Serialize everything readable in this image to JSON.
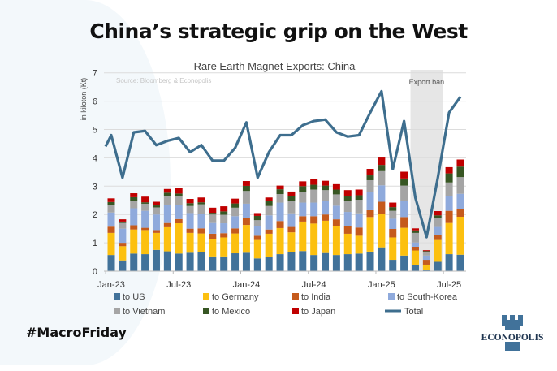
{
  "slide_title": "China’s strategic grip on the West",
  "hashtag": "#MacroFriday",
  "logo_text": "ECONOPOLIS",
  "chart_data": {
    "type": "bar",
    "stacked": true,
    "title": "Rare Earth Magnet Exports: China",
    "source": "Source: Bloomberg  & Econopolis",
    "ylabel": "in kiloton (Kt)",
    "xlabel": "",
    "ylim": [
      0,
      7
    ],
    "yticks": [
      "0",
      "1",
      "2",
      "3",
      "4",
      "5",
      "6",
      "7"
    ],
    "grid": true,
    "legend_position": "bottom",
    "annotation": {
      "text": "Export ban",
      "start_index": 27,
      "end_index": 29
    },
    "categories": [
      "Jan-23",
      "Feb-23",
      "Mar-23",
      "Apr-23",
      "May-23",
      "Jun-23",
      "Jul-23",
      "Aug-23",
      "Sep-23",
      "Oct-23",
      "Nov-23",
      "Dec-23",
      "Jan-24",
      "Feb-24",
      "Mar-24",
      "Apr-24",
      "May-24",
      "Jun-24",
      "Jul-24",
      "Aug-24",
      "Sep-24",
      "Oct-24",
      "Nov-24",
      "Dec-24",
      "Jan-25",
      "Feb-25",
      "Mar-25",
      "Apr-25",
      "May-25",
      "Jun-25",
      "Jul-25",
      "Aug-25"
    ],
    "xtick_labels": [
      {
        "index": 0,
        "label": "Jan-23"
      },
      {
        "index": 6,
        "label": "Jul-23"
      },
      {
        "index": 12,
        "label": "Jan-24"
      },
      {
        "index": 18,
        "label": "Jul-24"
      },
      {
        "index": 24,
        "label": "Jan-25"
      },
      {
        "index": 30,
        "label": "Jul-25"
      }
    ],
    "series": [
      {
        "name": "to US",
        "color": "#41729a",
        "values": [
          0.57,
          0.38,
          0.62,
          0.6,
          0.75,
          0.7,
          0.62,
          0.65,
          0.68,
          0.52,
          0.52,
          0.63,
          0.65,
          0.45,
          0.5,
          0.6,
          0.68,
          0.71,
          0.57,
          0.64,
          0.57,
          0.6,
          0.62,
          0.69,
          0.84,
          0.4,
          0.55,
          0.21,
          0.04,
          0.33,
          0.6,
          0.58
        ]
      },
      {
        "name": "to Germany",
        "color": "#fcc010",
        "values": [
          0.78,
          0.5,
          0.85,
          0.85,
          0.6,
          0.85,
          1.07,
          0.7,
          0.65,
          0.6,
          0.67,
          0.7,
          0.98,
          0.65,
          0.82,
          0.92,
          0.69,
          1.04,
          1.11,
          1.14,
          1.02,
          0.72,
          0.63,
          1.22,
          1.18,
          0.79,
          0.98,
          0.52,
          0.19,
          0.77,
          1.1,
          1.34
        ]
      },
      {
        "name": "to India",
        "color": "#c55a1c",
        "values": [
          0.22,
          0.12,
          0.15,
          0.08,
          0.1,
          0.15,
          0.15,
          0.15,
          0.18,
          0.2,
          0.15,
          0.18,
          0.25,
          0.15,
          0.15,
          0.25,
          0.19,
          0.19,
          0.26,
          0.22,
          0.24,
          0.28,
          0.29,
          0.24,
          0.43,
          0.3,
          0.38,
          0.13,
          0.17,
          0.17,
          0.43,
          0.26
        ]
      },
      {
        "name": "to South-Korea",
        "color": "#8faadc",
        "values": [
          0.5,
          0.5,
          0.6,
          0.6,
          0.55,
          0.65,
          0.5,
          0.55,
          0.5,
          0.38,
          0.35,
          0.43,
          0.5,
          0.35,
          0.5,
          0.65,
          0.48,
          0.48,
          0.48,
          0.49,
          0.48,
          0.49,
          0.5,
          0.63,
          0.58,
          0.36,
          0.58,
          0.15,
          0.15,
          0.29,
          0.51,
          0.55
        ]
      },
      {
        "name": "to Vietnam",
        "color": "#a5a5a5",
        "values": [
          0.27,
          0.2,
          0.27,
          0.25,
          0.25,
          0.3,
          0.3,
          0.25,
          0.35,
          0.3,
          0.3,
          0.3,
          0.45,
          0.2,
          0.33,
          0.3,
          0.43,
          0.38,
          0.46,
          0.37,
          0.4,
          0.38,
          0.48,
          0.43,
          0.5,
          0.28,
          0.53,
          0.34,
          0.12,
          0.33,
          0.49,
          0.59
        ]
      },
      {
        "name": "to Mexico",
        "color": "#375623",
        "values": [
          0.1,
          0.05,
          0.12,
          0.05,
          0.07,
          0.12,
          0.1,
          0.1,
          0.07,
          0.06,
          0.12,
          0.15,
          0.18,
          0.15,
          0.17,
          0.17,
          0.17,
          0.2,
          0.17,
          0.16,
          0.17,
          0.19,
          0.16,
          0.17,
          0.22,
          0.13,
          0.25,
          0.09,
          0.04,
          0.08,
          0.32,
          0.37
        ]
      },
      {
        "name": "to Japan",
        "color": "#c00000",
        "values": [
          0.13,
          0.08,
          0.14,
          0.2,
          0.13,
          0.13,
          0.2,
          0.15,
          0.17,
          0.18,
          0.18,
          0.17,
          0.17,
          0.1,
          0.13,
          0.13,
          0.17,
          0.17,
          0.19,
          0.17,
          0.19,
          0.2,
          0.2,
          0.23,
          0.26,
          0.16,
          0.24,
          0.07,
          0.03,
          0.15,
          0.22,
          0.25
        ]
      }
    ],
    "line": {
      "name": "Total",
      "color": "#3e6e8e",
      "values": [
        4.8,
        3.3,
        4.9,
        4.95,
        4.45,
        4.6,
        4.7,
        4.2,
        4.45,
        3.9,
        3.9,
        4.35,
        5.25,
        3.3,
        4.2,
        4.8,
        4.8,
        5.15,
        5.3,
        5.35,
        4.9,
        4.75,
        4.8,
        5.6,
        6.35,
        3.6,
        5.3,
        2.6,
        1.2,
        3.3,
        5.6,
        6.15
      ]
    }
  }
}
